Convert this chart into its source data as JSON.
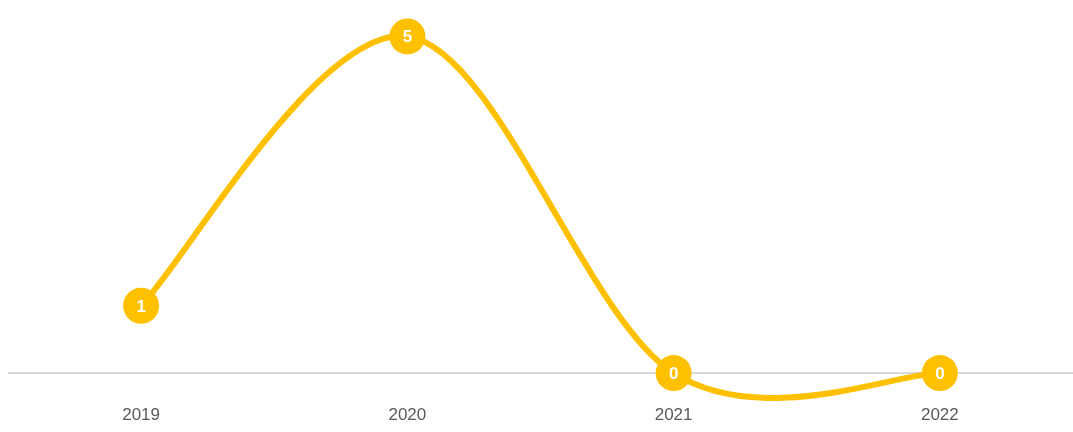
{
  "chart_data": {
    "type": "line",
    "categories": [
      "2019",
      "2020",
      "2021",
      "2022"
    ],
    "series": [
      {
        "color": "#ffc000",
        "values": [
          1,
          5,
          0,
          0
        ]
      }
    ],
    "data_labels": true,
    "marker": "circle",
    "grid": false,
    "legend": false
  }
}
